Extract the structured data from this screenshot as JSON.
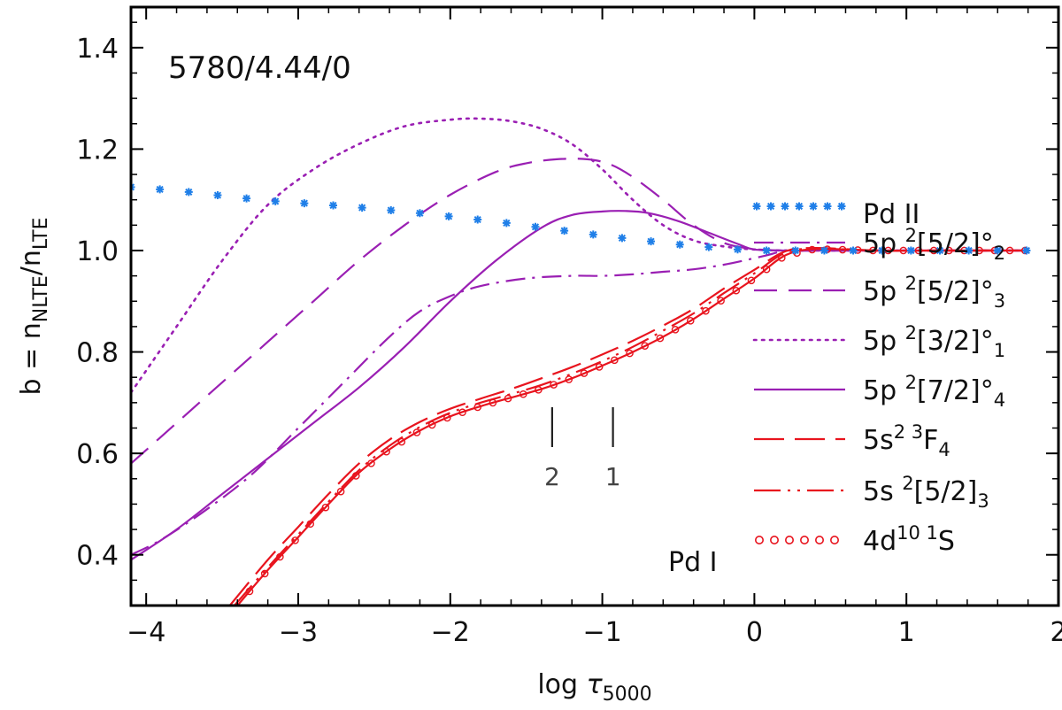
{
  "chart_data": {
    "type": "line",
    "title": "",
    "model_label": "5780/4.44/0",
    "xlabel": {
      "prefix": "log ",
      "symbol": "τ",
      "sub": "5000"
    },
    "ylabel": {
      "prefix": "b = n",
      "sub1": "NLTE",
      "mid": "/n",
      "sub2": "LTE"
    },
    "xlim": [
      -4.1,
      2.0
    ],
    "ylim": [
      0.3,
      1.48
    ],
    "x_ticks": [
      -4,
      -3,
      -2,
      -1,
      0,
      1,
      2
    ],
    "x_tick_labels": [
      "−4",
      "−3",
      "−2",
      "−1",
      "0",
      "1",
      "2"
    ],
    "y_ticks": [
      0.4,
      0.6,
      0.8,
      1.0,
      1.2,
      1.4
    ],
    "y_tick_labels": [
      "0.4",
      "0.6",
      "0.8",
      "1.0",
      "1.2",
      "1.4"
    ],
    "markers": [
      {
        "x": -1.33,
        "label": "2"
      },
      {
        "x": -0.93,
        "label": "1"
      }
    ],
    "annotations": {
      "pd2": "Pd II",
      "pd1": "Pd I"
    },
    "colors": {
      "purple": "#9a1fb3",
      "red": "#e8141e",
      "blue": "#1f7fe8",
      "axis": "#000000"
    },
    "series": [
      {
        "name": "5p 2[5/2]o2",
        "legend": {
          "base": "5p ",
          "sup": "2",
          "mid": "[5/2]°",
          "sub": "2"
        },
        "style": "dashdot",
        "color": "purple",
        "x": [
          -4.1,
          -3.9,
          -3.6,
          -3.3,
          -3.0,
          -2.7,
          -2.4,
          -2.2,
          -2.0,
          -1.8,
          -1.5,
          -1.2,
          -1.0,
          -0.8,
          -0.6,
          -0.4,
          -0.2,
          0.0,
          0.1,
          0.2,
          0.3,
          0.6,
          1.0,
          1.4,
          1.8
        ],
        "values": [
          0.4,
          0.43,
          0.49,
          0.56,
          0.65,
          0.74,
          0.83,
          0.88,
          0.91,
          0.93,
          0.945,
          0.95,
          0.95,
          0.953,
          0.958,
          0.963,
          0.972,
          0.985,
          0.992,
          1.0,
          1.0,
          1.0,
          1.0,
          1.0,
          1.0
        ]
      },
      {
        "name": "5p 2[5/2]o3",
        "legend": {
          "base": "5p ",
          "sup": "2",
          "mid": "[5/2]°",
          "sub": "3"
        },
        "style": "dashed",
        "color": "purple",
        "x": [
          -4.1,
          -3.8,
          -3.5,
          -3.2,
          -2.9,
          -2.6,
          -2.3,
          -2.0,
          -1.7,
          -1.5,
          -1.3,
          -1.1,
          -0.95,
          -0.8,
          -0.6,
          -0.4,
          -0.2,
          0.0,
          0.2,
          0.4,
          0.8,
          1.2,
          1.8
        ],
        "values": [
          0.58,
          0.66,
          0.74,
          0.82,
          0.9,
          0.98,
          1.05,
          1.11,
          1.155,
          1.172,
          1.18,
          1.18,
          1.17,
          1.145,
          1.1,
          1.05,
          1.015,
          1.003,
          1.0,
          1.0,
          1.0,
          1.0,
          1.0
        ]
      },
      {
        "name": "5p 2[3/2]o1",
        "legend": {
          "base": "5p ",
          "sup": "2",
          "mid": "[3/2]°",
          "sub": "1"
        },
        "style": "dotted",
        "color": "purple",
        "x": [
          -4.1,
          -3.8,
          -3.5,
          -3.2,
          -2.9,
          -2.6,
          -2.3,
          -2.0,
          -1.8,
          -1.6,
          -1.4,
          -1.2,
          -1.0,
          -0.8,
          -0.6,
          -0.4,
          -0.2,
          0.0,
          0.2,
          0.4,
          0.8,
          1.2,
          1.8
        ],
        "values": [
          0.72,
          0.85,
          0.98,
          1.09,
          1.16,
          1.21,
          1.245,
          1.258,
          1.26,
          1.255,
          1.24,
          1.21,
          1.16,
          1.1,
          1.05,
          1.02,
          1.008,
          1.002,
          1.0,
          1.0,
          1.0,
          1.0,
          1.0
        ]
      },
      {
        "name": "5p 2[7/2]o4",
        "legend": {
          "base": "5p ",
          "sup": "2",
          "mid": "[7/2]°",
          "sub": "4"
        },
        "style": "solid",
        "color": "purple",
        "x": [
          -4.1,
          -3.8,
          -3.5,
          -3.2,
          -2.9,
          -2.6,
          -2.3,
          -2.0,
          -1.7,
          -1.4,
          -1.2,
          -1.0,
          -0.85,
          -0.7,
          -0.5,
          -0.3,
          -0.1,
          0.0,
          0.2,
          0.4,
          0.8,
          1.2,
          1.8
        ],
        "values": [
          0.39,
          0.45,
          0.52,
          0.59,
          0.66,
          0.73,
          0.81,
          0.9,
          0.98,
          1.045,
          1.07,
          1.077,
          1.078,
          1.074,
          1.058,
          1.035,
          1.012,
          1.002,
          1.0,
          1.0,
          1.0,
          1.0,
          1.0
        ]
      },
      {
        "name": "5s2 3F4",
        "legend": {
          "base": "5s",
          "sup": "2 3",
          "mid": "F",
          "sub": "4"
        },
        "style": "longdash",
        "color": "red",
        "x": [
          -3.45,
          -3.2,
          -3.0,
          -2.8,
          -2.6,
          -2.4,
          -2.2,
          -2.0,
          -1.8,
          -1.6,
          -1.4,
          -1.2,
          -1.0,
          -0.8,
          -0.6,
          -0.4,
          -0.2,
          0.0,
          0.2,
          0.4,
          0.8,
          1.2,
          1.8
        ],
        "values": [
          0.3,
          0.39,
          0.455,
          0.52,
          0.58,
          0.627,
          0.662,
          0.688,
          0.708,
          0.727,
          0.748,
          0.77,
          0.795,
          0.822,
          0.852,
          0.885,
          0.925,
          0.962,
          0.998,
          1.005,
          1.0,
          1.0,
          1.0
        ]
      },
      {
        "name": "5s 2[5/2]3",
        "legend": {
          "base": "5s ",
          "sup": "2",
          "mid": "[5/2]",
          "sub": "3"
        },
        "style": "dashdotdot",
        "color": "red",
        "x": [
          -3.42,
          -3.2,
          -3.0,
          -2.8,
          -2.6,
          -2.4,
          -2.2,
          -2.0,
          -1.8,
          -1.6,
          -1.4,
          -1.2,
          -1.0,
          -0.8,
          -0.6,
          -0.4,
          -0.2,
          0.0,
          0.2,
          0.4,
          0.8,
          1.2,
          1.8
        ],
        "values": [
          0.3,
          0.375,
          0.44,
          0.505,
          0.567,
          0.615,
          0.652,
          0.68,
          0.7,
          0.717,
          0.735,
          0.757,
          0.782,
          0.81,
          0.842,
          0.876,
          0.916,
          0.955,
          0.995,
          1.004,
          1.0,
          1.0,
          1.0
        ]
      },
      {
        "name": "4d10 1S",
        "legend": {
          "base": "4d",
          "sup": "10 1",
          "mid": "S",
          "sub": ""
        },
        "style": "solid-circles",
        "color": "red",
        "x": [
          -3.4,
          -3.2,
          -3.0,
          -2.8,
          -2.6,
          -2.4,
          -2.2,
          -2.0,
          -1.8,
          -1.6,
          -1.4,
          -1.2,
          -1.0,
          -0.8,
          -0.6,
          -0.4,
          -0.2,
          0.0,
          0.2,
          0.4,
          0.8,
          1.2,
          1.8
        ],
        "values": [
          0.3,
          0.37,
          0.435,
          0.5,
          0.562,
          0.608,
          0.645,
          0.673,
          0.693,
          0.71,
          0.727,
          0.748,
          0.773,
          0.8,
          0.83,
          0.865,
          0.905,
          0.945,
          0.99,
          1.003,
          1.0,
          1.0,
          1.0
        ]
      },
      {
        "name": "Pd II",
        "legend": null,
        "style": "asterisk",
        "color": "blue",
        "x": [
          -4.1,
          -3.8,
          -3.5,
          -3.2,
          -2.9,
          -2.6,
          -2.3,
          -2.0,
          -1.7,
          -1.4,
          -1.1,
          -0.8,
          -0.5,
          -0.2,
          0.0,
          0.2,
          0.4,
          0.8,
          1.2,
          1.8
        ],
        "values": [
          1.125,
          1.118,
          1.108,
          1.098,
          1.092,
          1.085,
          1.077,
          1.067,
          1.057,
          1.045,
          1.033,
          1.022,
          1.012,
          1.004,
          1.0,
          1.0,
          1.0,
          1.0,
          1.0,
          1.0
        ]
      }
    ]
  }
}
